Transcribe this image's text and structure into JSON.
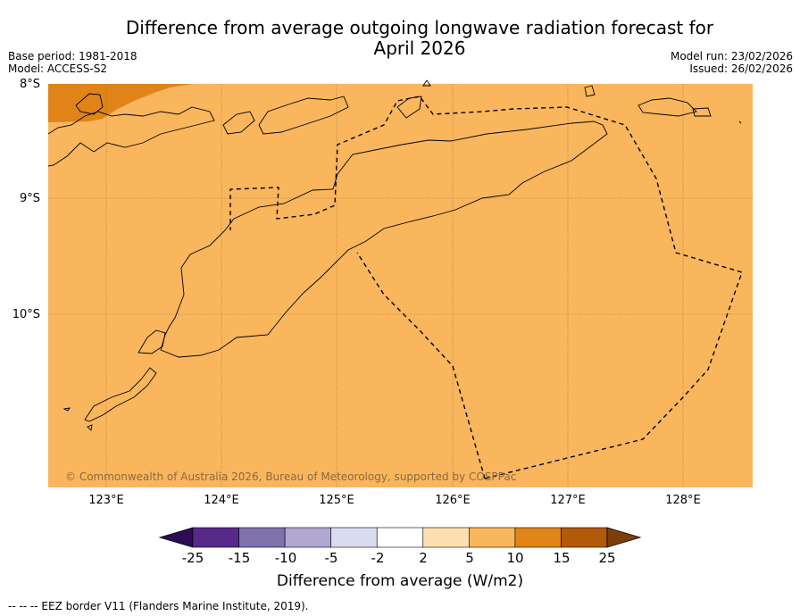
{
  "title_line1": "Difference from average outgoing longwave radiation forecast for",
  "title_line2": "April 2026",
  "base_period": "Base period: 1981-2018",
  "model": "Model: ACCESS-S2",
  "model_run": "Model run: 23/02/2026",
  "issued": "Issued: 26/02/2026",
  "copyright": "© Commonwealth of Australia 2026, Bureau of Meteorology, supported by COSPPac",
  "lat_labels": [
    "8°S",
    "9°S",
    "10°S"
  ],
  "lon_labels": [
    "123°E",
    "124°E",
    "125°E",
    "126°E",
    "127°E",
    "128°E"
  ],
  "colorbar": {
    "labels": [
      "-25",
      "-15",
      "-10",
      "-5",
      "-2",
      "2",
      "5",
      "10",
      "15",
      "25"
    ],
    "colors": [
      "#2e0c55",
      "#57298b",
      "#7e72ad",
      "#b0a8d2",
      "#d9dbee",
      "#ffffff",
      "#fddeb0",
      "#fab65d",
      "#e08418",
      "#b3590a",
      "#7d3e08"
    ],
    "title": "Difference from average (W/m2)"
  },
  "map_fill_color": "#fab65d",
  "anomaly_patch_color": "#e08418",
  "footer": "--  --  -- EEZ border V11 (Flanders Marine Institute, 2019)."
}
